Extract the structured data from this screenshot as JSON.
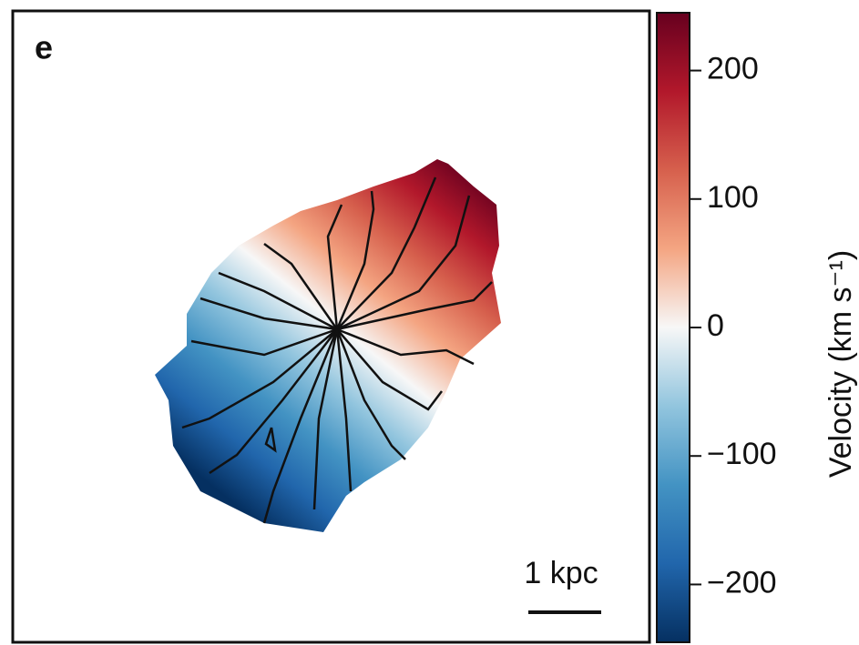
{
  "chart_data": {
    "type": "velocity_map",
    "panel_label": "e",
    "scale_label": "1 kpc",
    "colorbar_label": "Velocity (km s⁻¹)",
    "colormap": [
      "#053061",
      "#2166ac",
      "#4393c3",
      "#92c5de",
      "#f7f7f7",
      "#f4a582",
      "#d6604d",
      "#b2182b",
      "#67001f"
    ],
    "ylim": [
      -245,
      245
    ],
    "yticks": [
      {
        "value": -200,
        "label": "−200"
      },
      {
        "value": -100,
        "label": "−100"
      },
      0,
      100,
      200
    ]
  }
}
